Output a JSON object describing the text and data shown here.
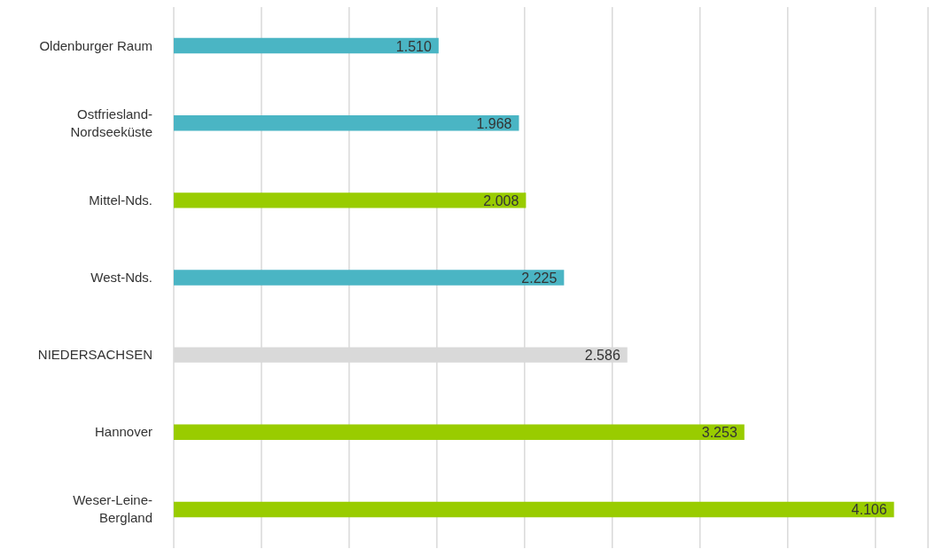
{
  "chart_data": {
    "type": "bar",
    "orientation": "horizontal",
    "categories": [
      "Oldenburger Raum",
      "Ostfriesland-Nordseeküste",
      "Mittel-Nds.",
      "West-Nds.",
      "NIEDERSACHSEN",
      "Hannover",
      "Weser-Leine-Bergland"
    ],
    "values": [
      1510,
      1968,
      2008,
      2225,
      2586,
      3253,
      4106
    ],
    "colors": [
      "#4ab5c4",
      "#4ab5c4",
      "#99cc00",
      "#4ab5c4",
      "#d9d9d9",
      "#99cc00",
      "#99cc00"
    ],
    "value_labels": [
      "1.510",
      "1.968",
      "2.008",
      "2.225",
      "2.586",
      "3.253",
      "4.106"
    ],
    "xlim": [
      0,
      4300
    ],
    "xticks": [
      {
        "value": 0,
        "label": null
      },
      {
        "value": 500,
        "label": null
      },
      {
        "value": 1000,
        "label": null
      },
      {
        "value": 1500,
        "label": null
      },
      {
        "value": 2000,
        "label": null
      },
      {
        "value": 2500,
        "label": null
      },
      {
        "value": 3000,
        "label": null
      },
      {
        "value": 3500,
        "label": null
      },
      {
        "value": 4000,
        "label": null
      }
    ],
    "grid": "x",
    "tick_labels": "y",
    "legend": false
  }
}
